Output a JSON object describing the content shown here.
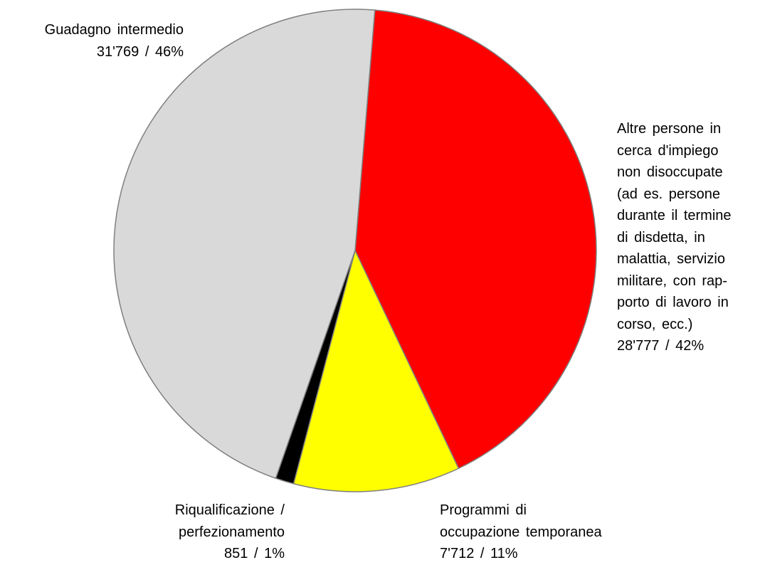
{
  "chart_data": {
    "type": "pie",
    "categories": [
      "Altre persone in\ncerca d'impiego\nnon disoccupate\n(ad es. persone\ndurante il termine\ndi disdetta, in\nmalattia, servizio\nmilitare, con rap-\nporto di lavoro in\ncorso, ecc.)",
      "Programmi di\noccupazione temporanea",
      "Riqualificazione /\nperfezionamento",
      "Guadagno intermedio"
    ],
    "values": [
      28777,
      7712,
      851,
      31769
    ],
    "value_labels": [
      "28'777 / 42%",
      "7'712 / 11%",
      "851 / 1%",
      "31'769 / 46%"
    ],
    "colors": [
      "#ff0000",
      "#ffff00",
      "#000000",
      "#d9d9d9"
    ]
  }
}
